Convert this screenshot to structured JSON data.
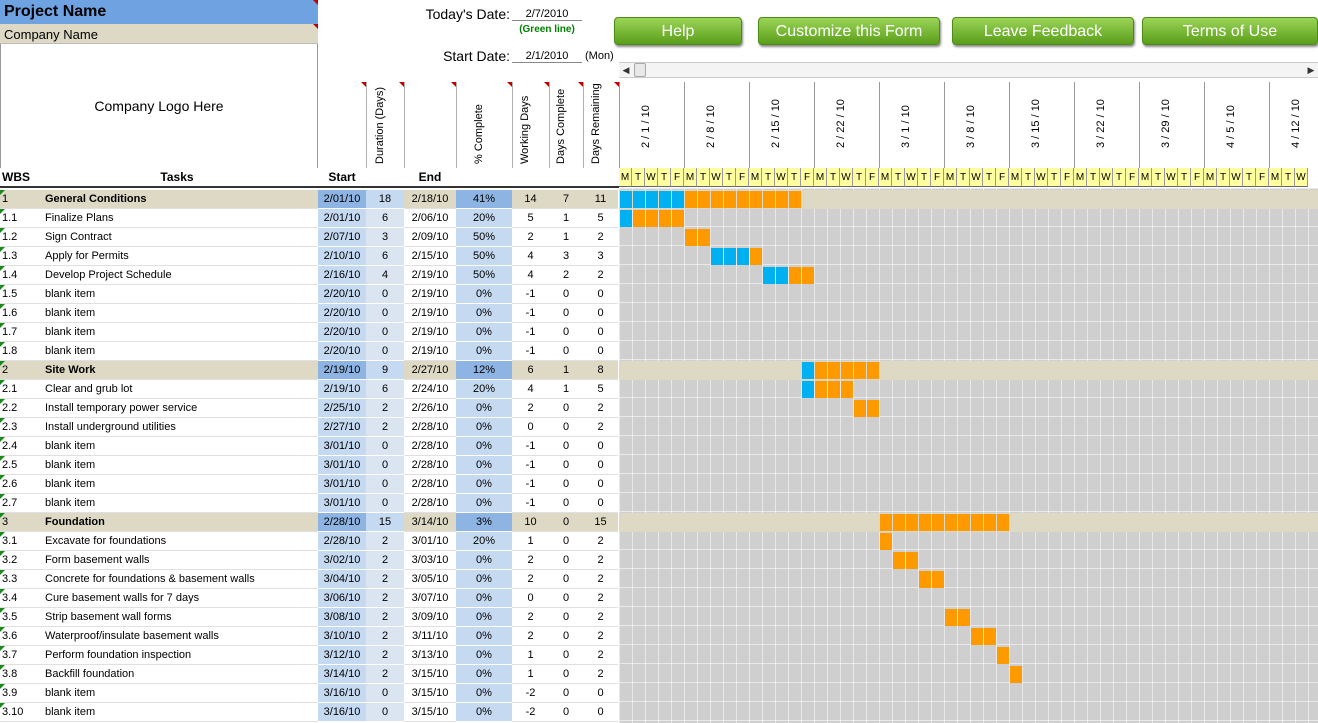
{
  "header": {
    "project_name": "Project Name",
    "company_name": "Company Name",
    "logo_text": "Company Logo Here",
    "todays_date_label": "Today's Date:",
    "todays_date": "2/7/2010",
    "green_line_note": "(Green line)",
    "start_date_label": "Start Date:",
    "start_date": "2/1/2010",
    "start_day": "(Mon)"
  },
  "buttons": {
    "help": "Help",
    "customize": "Customize this Form",
    "feedback": "Leave Feedback",
    "terms": "Terms of Use"
  },
  "columns": {
    "wbs": "WBS",
    "tasks": "Tasks",
    "start": "Start",
    "duration": "Duration (Days)",
    "end": "End",
    "pct": "% Complete",
    "working_days": "Working Days",
    "days_complete": "Days Complete",
    "days_remaining": "Days Remaining"
  },
  "weeks": [
    "2 / 1 / 10",
    "2 / 8 / 10",
    "2 / 15 / 10",
    "2 / 22 / 10",
    "3 / 1 / 10",
    "3 / 8 / 10",
    "3 / 15 / 10",
    "3 / 22 / 10",
    "3 / 29 / 10",
    "4 / 5 / 10",
    "4 / 12 / 10"
  ],
  "weekday_letters": [
    "M",
    "T",
    "W",
    "T",
    "F"
  ],
  "colors": {
    "done": "#00b0f0",
    "remaining": "#ff9900",
    "summary": "#ddd9c4",
    "today_line": "#00a000"
  },
  "rows": [
    {
      "wbs": "1",
      "task": "General Conditions",
      "start": "2/01/10",
      "dur": "18",
      "end": "2/18/10",
      "pct": "41%",
      "wd": "14",
      "dc": "7",
      "dr": "11",
      "summary": true,
      "bar": [
        0,
        14,
        5
      ]
    },
    {
      "wbs": "1.1",
      "task": "Finalize Plans",
      "start": "2/01/10",
      "dur": "6",
      "end": "2/06/10",
      "pct": "20%",
      "wd": "5",
      "dc": "1",
      "dr": "5",
      "bar": [
        0,
        5,
        1
      ]
    },
    {
      "wbs": "1.2",
      "task": "Sign Contract",
      "start": "2/07/10",
      "dur": "3",
      "end": "2/09/10",
      "pct": "50%",
      "wd": "2",
      "dc": "1",
      "dr": "2",
      "bar": [
        5,
        2,
        0
      ]
    },
    {
      "wbs": "1.3",
      "task": "Apply for Permits",
      "start": "2/10/10",
      "dur": "6",
      "end": "2/15/10",
      "pct": "50%",
      "wd": "4",
      "dc": "3",
      "dr": "3",
      "bar": [
        7,
        4,
        3
      ]
    },
    {
      "wbs": "1.4",
      "task": "Develop Project Schedule",
      "start": "2/16/10",
      "dur": "4",
      "end": "2/19/10",
      "pct": "50%",
      "wd": "4",
      "dc": "2",
      "dr": "2",
      "bar": [
        11,
        4,
        2
      ]
    },
    {
      "wbs": "1.5",
      "task": "blank item",
      "start": "2/20/10",
      "dur": "0",
      "end": "2/19/10",
      "pct": "0%",
      "wd": "-1",
      "dc": "0",
      "dr": "0"
    },
    {
      "wbs": "1.6",
      "task": "blank item",
      "start": "2/20/10",
      "dur": "0",
      "end": "2/19/10",
      "pct": "0%",
      "wd": "-1",
      "dc": "0",
      "dr": "0"
    },
    {
      "wbs": "1.7",
      "task": "blank item",
      "start": "2/20/10",
      "dur": "0",
      "end": "2/19/10",
      "pct": "0%",
      "wd": "-1",
      "dc": "0",
      "dr": "0"
    },
    {
      "wbs": "1.8",
      "task": "blank item",
      "start": "2/20/10",
      "dur": "0",
      "end": "2/19/10",
      "pct": "0%",
      "wd": "-1",
      "dc": "0",
      "dr": "0"
    },
    {
      "wbs": "2",
      "task": "Site Work",
      "start": "2/19/10",
      "dur": "9",
      "end": "2/27/10",
      "pct": "12%",
      "wd": "6",
      "dc": "1",
      "dr": "8",
      "summary": true,
      "bar": [
        14,
        6,
        1
      ]
    },
    {
      "wbs": "2.1",
      "task": "Clear and grub lot",
      "start": "2/19/10",
      "dur": "6",
      "end": "2/24/10",
      "pct": "20%",
      "wd": "4",
      "dc": "1",
      "dr": "5",
      "bar": [
        14,
        4,
        1
      ]
    },
    {
      "wbs": "2.2",
      "task": "Install temporary power service",
      "start": "2/25/10",
      "dur": "2",
      "end": "2/26/10",
      "pct": "0%",
      "wd": "2",
      "dc": "0",
      "dr": "2",
      "bar": [
        18,
        2,
        0
      ]
    },
    {
      "wbs": "2.3",
      "task": "Install underground utilities",
      "start": "2/27/10",
      "dur": "2",
      "end": "2/28/10",
      "pct": "0%",
      "wd": "0",
      "dc": "0",
      "dr": "2"
    },
    {
      "wbs": "2.4",
      "task": "blank item",
      "start": "3/01/10",
      "dur": "0",
      "end": "2/28/10",
      "pct": "0%",
      "wd": "-1",
      "dc": "0",
      "dr": "0"
    },
    {
      "wbs": "2.5",
      "task": "blank item",
      "start": "3/01/10",
      "dur": "0",
      "end": "2/28/10",
      "pct": "0%",
      "wd": "-1",
      "dc": "0",
      "dr": "0"
    },
    {
      "wbs": "2.6",
      "task": "blank item",
      "start": "3/01/10",
      "dur": "0",
      "end": "2/28/10",
      "pct": "0%",
      "wd": "-1",
      "dc": "0",
      "dr": "0"
    },
    {
      "wbs": "2.7",
      "task": "blank item",
      "start": "3/01/10",
      "dur": "0",
      "end": "2/28/10",
      "pct": "0%",
      "wd": "-1",
      "dc": "0",
      "dr": "0"
    },
    {
      "wbs": "3",
      "task": "Foundation",
      "start": "2/28/10",
      "dur": "15",
      "end": "3/14/10",
      "pct": "3%",
      "wd": "10",
      "dc": "0",
      "dr": "15",
      "summary": true,
      "bar": [
        20,
        10,
        0
      ]
    },
    {
      "wbs": "3.1",
      "task": "Excavate for foundations",
      "start": "2/28/10",
      "dur": "2",
      "end": "3/01/10",
      "pct": "20%",
      "wd": "1",
      "dc": "0",
      "dr": "2",
      "bar": [
        20,
        1,
        0
      ]
    },
    {
      "wbs": "3.2",
      "task": "Form basement walls",
      "start": "3/02/10",
      "dur": "2",
      "end": "3/03/10",
      "pct": "0%",
      "wd": "2",
      "dc": "0",
      "dr": "2",
      "bar": [
        21,
        2,
        0
      ]
    },
    {
      "wbs": "3.3",
      "task": "Concrete for foundations & basement walls",
      "start": "3/04/10",
      "dur": "2",
      "end": "3/05/10",
      "pct": "0%",
      "wd": "2",
      "dc": "0",
      "dr": "2",
      "bar": [
        23,
        2,
        0
      ]
    },
    {
      "wbs": "3.4",
      "task": "Cure basement walls for 7 days",
      "start": "3/06/10",
      "dur": "2",
      "end": "3/07/10",
      "pct": "0%",
      "wd": "0",
      "dc": "0",
      "dr": "2"
    },
    {
      "wbs": "3.5",
      "task": "Strip basement wall forms",
      "start": "3/08/10",
      "dur": "2",
      "end": "3/09/10",
      "pct": "0%",
      "wd": "2",
      "dc": "0",
      "dr": "2",
      "bar": [
        25,
        2,
        0
      ]
    },
    {
      "wbs": "3.6",
      "task": "Waterproof/insulate basement walls",
      "start": "3/10/10",
      "dur": "2",
      "end": "3/11/10",
      "pct": "0%",
      "wd": "2",
      "dc": "0",
      "dr": "2",
      "bar": [
        27,
        2,
        0
      ]
    },
    {
      "wbs": "3.7",
      "task": "Perform foundation inspection",
      "start": "3/12/10",
      "dur": "2",
      "end": "3/13/10",
      "pct": "0%",
      "wd": "1",
      "dc": "0",
      "dr": "2",
      "bar": [
        29,
        1,
        0
      ]
    },
    {
      "wbs": "3.8",
      "task": "Backfill foundation",
      "start": "3/14/10",
      "dur": "2",
      "end": "3/15/10",
      "pct": "0%",
      "wd": "1",
      "dc": "0",
      "dr": "2",
      "bar": [
        30,
        1,
        0
      ]
    },
    {
      "wbs": "3.9",
      "task": "blank item",
      "start": "3/16/10",
      "dur": "0",
      "end": "3/15/10",
      "pct": "0%",
      "wd": "-2",
      "dc": "0",
      "dr": "0"
    },
    {
      "wbs": "3.10",
      "task": "blank item",
      "start": "3/16/10",
      "dur": "0",
      "end": "3/15/10",
      "pct": "0%",
      "wd": "-2",
      "dc": "0",
      "dr": "0"
    }
  ]
}
